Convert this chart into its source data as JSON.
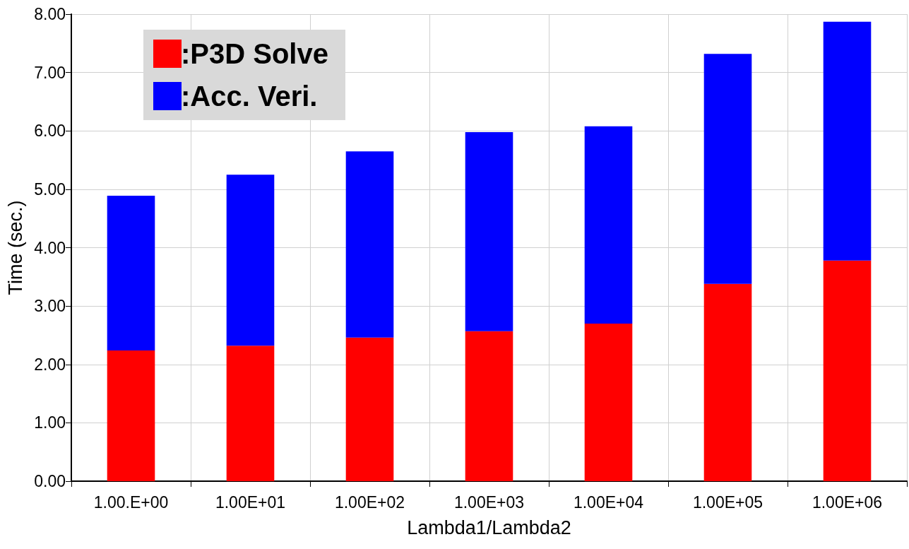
{
  "chart_data": {
    "type": "bar",
    "stacked": true,
    "xlabel": "Lambda1/Lambda2",
    "ylabel": "Time (sec.)",
    "categories": [
      "1.00.E+00",
      "1.00E+01",
      "1.00E+02",
      "1.00E+03",
      "1.00E+04",
      "1.00E+05",
      "1.00E+06"
    ],
    "series": [
      {
        "name": ":P3D Solve",
        "color": "#ff0000",
        "values": [
          2.24,
          2.32,
          2.46,
          2.57,
          2.7,
          3.38,
          3.78
        ]
      },
      {
        "name": ":Acc. Veri.",
        "color": "#0000ff",
        "values": [
          2.65,
          2.93,
          3.19,
          3.41,
          3.38,
          3.94,
          4.09
        ]
      }
    ],
    "ylim": [
      0,
      8
    ],
    "yticks": [
      {
        "value": 0,
        "label": "0.00"
      },
      {
        "value": 1,
        "label": "1.00"
      },
      {
        "value": 2,
        "label": "2.00"
      },
      {
        "value": 3,
        "label": "3.00"
      },
      {
        "value": 4,
        "label": "4.00"
      },
      {
        "value": 5,
        "label": "5.00"
      },
      {
        "value": 6,
        "label": "6.00"
      },
      {
        "value": 7,
        "label": "7.00"
      },
      {
        "value": 8,
        "label": "8.00"
      }
    ],
    "grid": true,
    "legend": "top left"
  }
}
